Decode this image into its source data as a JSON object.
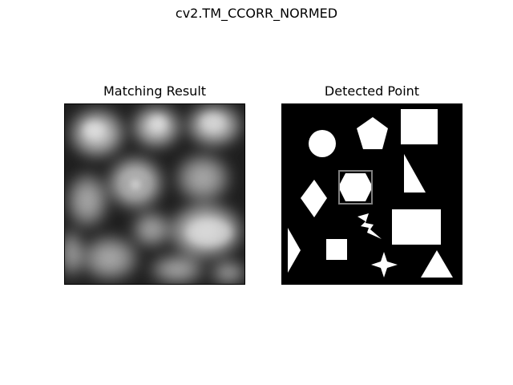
{
  "figure": {
    "title": "cv2.TM_CCORR_NORMED"
  },
  "panels": {
    "left": {
      "title": "Matching Result",
      "colormap": "gray"
    },
    "right": {
      "title": "Detected Point",
      "colormap": "gray",
      "detection_box_color": "#808080",
      "shape_color": "#ffffff",
      "background_color": "#000000"
    }
  }
}
